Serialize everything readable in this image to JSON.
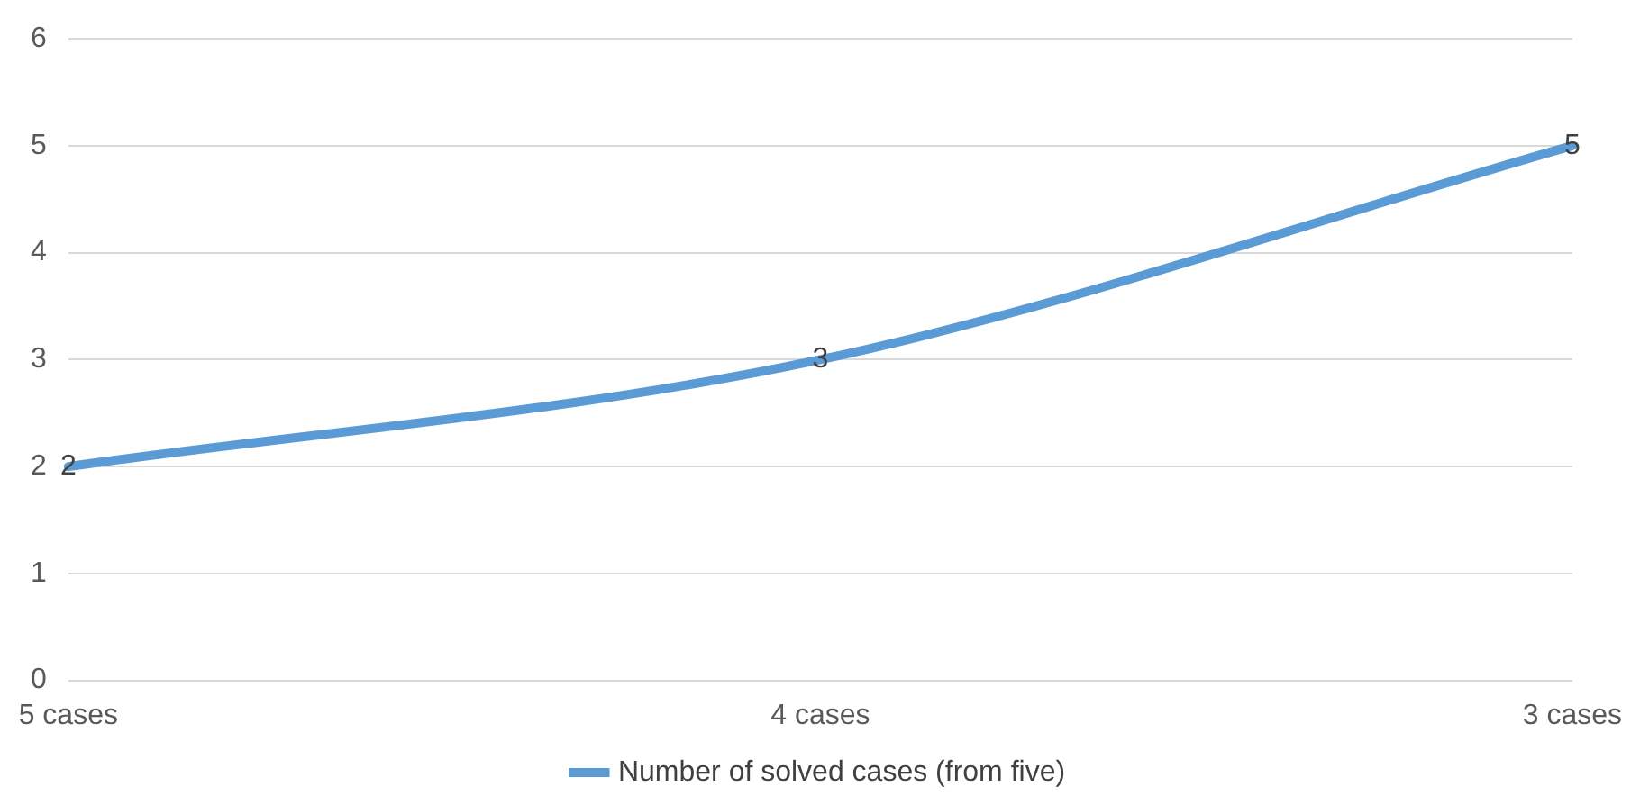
{
  "chart_data": {
    "type": "line",
    "categories": [
      "5 cases",
      "4 cases",
      "3 cases"
    ],
    "series": [
      {
        "name": "Number of solved cases (from five)",
        "color": "#5b9bd5",
        "values": [
          2,
          3,
          5
        ]
      }
    ],
    "ylim": [
      0,
      6
    ],
    "yticks": [
      0,
      1,
      2,
      3,
      4,
      5,
      6
    ],
    "grid": "y",
    "legend": "bottom",
    "data_labels": true,
    "marker": "none",
    "line_style": "solid"
  }
}
